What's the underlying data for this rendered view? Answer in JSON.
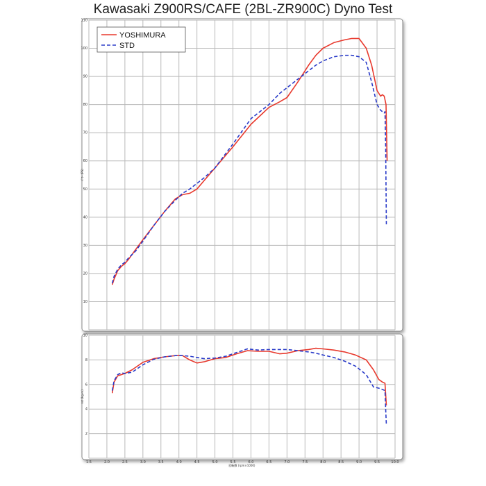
{
  "title": "Kawasaki Z900RS/CAFE (2BL-ZR900C) Dyno Test",
  "colors": {
    "yoshimura": "#e8392d",
    "std": "#2a3bc9",
    "grid": "#b9b9b9",
    "frame": "#888888",
    "panel_bg": "#ffffff"
  },
  "chart_data": [
    {
      "type": "line",
      "ylabel": "ﾊﾟﾜｰ (PS)",
      "xlim": [
        1.5,
        10.0
      ],
      "ylim": [
        0,
        110
      ],
      "yticks": [
        10,
        20,
        30,
        40,
        50,
        60,
        70,
        80,
        90,
        100,
        110
      ],
      "grid": true,
      "legend_position": "top-left",
      "series": [
        {
          "name": "YOSHIMURA",
          "x": [
            2.15,
            2.2,
            2.3,
            2.4,
            2.5,
            2.6,
            2.8,
            3.0,
            3.3,
            3.6,
            3.9,
            4.1,
            4.3,
            4.5,
            4.7,
            5.0,
            5.5,
            6.0,
            6.5,
            6.8,
            7.0,
            7.3,
            7.6,
            7.8,
            8.0,
            8.3,
            8.6,
            8.8,
            9.0,
            9.2,
            9.35,
            9.5,
            9.6,
            9.65,
            9.7,
            9.75,
            9.78
          ],
          "y": [
            16,
            18,
            21,
            22.5,
            23.5,
            25,
            28.5,
            32,
            37,
            42,
            46.5,
            48,
            48.5,
            50,
            53,
            57.5,
            65,
            73,
            79,
            81,
            82.5,
            88,
            94,
            97.5,
            100,
            102,
            103,
            103.5,
            103.5,
            100,
            94,
            85,
            83,
            83.5,
            83,
            80,
            60
          ]
        },
        {
          "name": "STD",
          "x": [
            2.15,
            2.2,
            2.3,
            2.4,
            2.5,
            2.6,
            2.8,
            3.0,
            3.3,
            3.6,
            3.9,
            4.1,
            4.3,
            4.5,
            4.7,
            5.0,
            5.5,
            6.0,
            6.5,
            6.8,
            7.0,
            7.3,
            7.6,
            7.8,
            8.0,
            8.3,
            8.6,
            8.8,
            9.0,
            9.2,
            9.35,
            9.5,
            9.6,
            9.65,
            9.7,
            9.72,
            9.74,
            9.76
          ],
          "y": [
            16.5,
            19,
            21.5,
            23,
            24,
            25.5,
            28,
            31.5,
            37,
            42,
            46,
            48.5,
            50,
            52,
            54,
            57.5,
            66,
            75,
            80,
            84,
            86,
            89,
            92,
            94,
            95.5,
            97,
            97.5,
            97.5,
            97,
            95,
            88,
            80,
            78,
            77.5,
            77,
            77.5,
            65,
            37
          ]
        }
      ]
    },
    {
      "type": "line",
      "ylabel": "ﾄﾙｸ (kg-m)",
      "xlabel": "回転数 (rpm×1000)",
      "xlim": [
        1.5,
        10.0
      ],
      "ylim": [
        0,
        10
      ],
      "yticks": [
        2,
        4,
        6,
        8,
        10
      ],
      "xticks": [
        1.5,
        2.0,
        2.5,
        3.0,
        3.5,
        4.0,
        4.5,
        5.0,
        5.5,
        6.0,
        6.5,
        7.0,
        7.5,
        8.0,
        8.5,
        9.0,
        9.5,
        10.0
      ],
      "grid": true,
      "series": [
        {
          "name": "YOSHIMURA",
          "x": [
            2.15,
            2.2,
            2.3,
            2.4,
            2.5,
            2.7,
            3.0,
            3.3,
            3.6,
            3.9,
            4.1,
            4.3,
            4.5,
            4.7,
            5.0,
            5.3,
            5.6,
            5.9,
            6.2,
            6.5,
            6.8,
            7.0,
            7.3,
            7.6,
            7.8,
            8.0,
            8.3,
            8.6,
            8.9,
            9.2,
            9.4,
            9.55,
            9.65,
            9.72,
            9.76
          ],
          "y": [
            5.3,
            6.2,
            6.7,
            6.8,
            6.9,
            7.2,
            7.8,
            8.1,
            8.25,
            8.35,
            8.35,
            8.0,
            7.75,
            7.85,
            8.1,
            8.2,
            8.5,
            8.75,
            8.7,
            8.7,
            8.5,
            8.55,
            8.75,
            8.85,
            8.95,
            8.9,
            8.8,
            8.65,
            8.4,
            8.0,
            7.2,
            6.4,
            6.2,
            6.1,
            4.3
          ]
        },
        {
          "name": "STD",
          "x": [
            2.15,
            2.2,
            2.3,
            2.4,
            2.5,
            2.7,
            3.0,
            3.3,
            3.6,
            3.9,
            4.1,
            4.3,
            4.5,
            4.7,
            5.0,
            5.3,
            5.6,
            5.9,
            6.2,
            6.5,
            6.8,
            7.0,
            7.3,
            7.6,
            7.8,
            8.0,
            8.3,
            8.6,
            8.9,
            9.2,
            9.4,
            9.55,
            9.65,
            9.72,
            9.74,
            9.76
          ],
          "y": [
            5.5,
            6.3,
            6.8,
            6.95,
            6.9,
            7.0,
            7.6,
            8.05,
            8.25,
            8.35,
            8.35,
            8.3,
            8.2,
            8.1,
            8.15,
            8.3,
            8.6,
            8.9,
            8.8,
            8.85,
            8.85,
            8.85,
            8.75,
            8.65,
            8.55,
            8.4,
            8.2,
            7.9,
            7.5,
            6.8,
            5.8,
            5.7,
            5.6,
            5.5,
            4.0,
            2.7
          ]
        }
      ]
    }
  ]
}
